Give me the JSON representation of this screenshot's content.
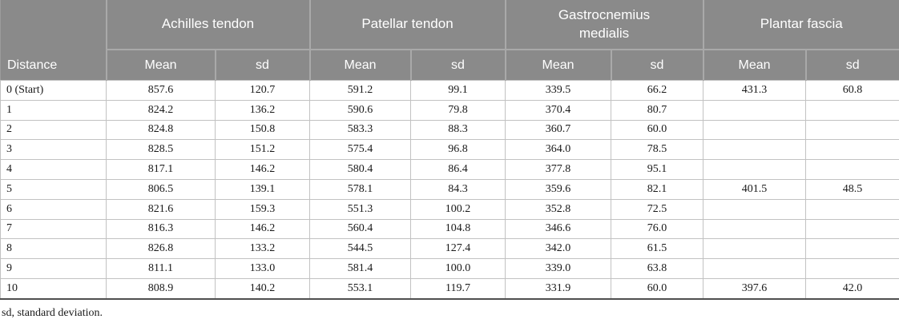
{
  "table": {
    "distance_header": "Distance",
    "groups": [
      {
        "label": "Achilles tendon",
        "mean_label": "Mean",
        "sd_label": "sd"
      },
      {
        "label": "Patellar tendon",
        "mean_label": "Mean",
        "sd_label": "sd"
      },
      {
        "label": "Gastrocnemius medialis",
        "mean_label": "Mean",
        "sd_label": "sd"
      },
      {
        "label": "Plantar fascia",
        "mean_label": "Mean",
        "sd_label": "sd"
      }
    ],
    "rows": [
      {
        "distance": "0 (Start)",
        "cells": [
          "857.6",
          "120.7",
          "591.2",
          "99.1",
          "339.5",
          "66.2",
          "431.3",
          "60.8"
        ]
      },
      {
        "distance": "1",
        "cells": [
          "824.2",
          "136.2",
          "590.6",
          "79.8",
          "370.4",
          "80.7",
          "",
          ""
        ]
      },
      {
        "distance": "2",
        "cells": [
          "824.8",
          "150.8",
          "583.3",
          "88.3",
          "360.7",
          "60.0",
          "",
          ""
        ]
      },
      {
        "distance": "3",
        "cells": [
          "828.5",
          "151.2",
          "575.4",
          "96.8",
          "364.0",
          "78.5",
          "",
          ""
        ]
      },
      {
        "distance": "4",
        "cells": [
          "817.1",
          "146.2",
          "580.4",
          "86.4",
          "377.8",
          "95.1",
          "",
          ""
        ]
      },
      {
        "distance": "5",
        "cells": [
          "806.5",
          "139.1",
          "578.1",
          "84.3",
          "359.6",
          "82.1",
          "401.5",
          "48.5"
        ]
      },
      {
        "distance": "6",
        "cells": [
          "821.6",
          "159.3",
          "551.3",
          "100.2",
          "352.8",
          "72.5",
          "",
          ""
        ]
      },
      {
        "distance": "7",
        "cells": [
          "816.3",
          "146.2",
          "560.4",
          "104.8",
          "346.6",
          "76.0",
          "",
          ""
        ]
      },
      {
        "distance": "8",
        "cells": [
          "826.8",
          "133.2",
          "544.5",
          "127.4",
          "342.0",
          "61.5",
          "",
          ""
        ]
      },
      {
        "distance": "9",
        "cells": [
          "811.1",
          "133.0",
          "581.4",
          "100.0",
          "339.0",
          "63.8",
          "",
          ""
        ]
      },
      {
        "distance": "10",
        "cells": [
          "808.9",
          "140.2",
          "553.1",
          "119.7",
          "331.9",
          "60.0",
          "397.6",
          "42.0"
        ]
      }
    ]
  },
  "footnote": "sd, standard deviation.",
  "colors": {
    "header_bg": "#8a8a8a",
    "header_text": "#ffffff",
    "header_divider": "#a9a9a9",
    "body_border": "#c2c2c2",
    "bottom_rule": "#4f4f4f",
    "body_text": "#1a1a1a"
  }
}
